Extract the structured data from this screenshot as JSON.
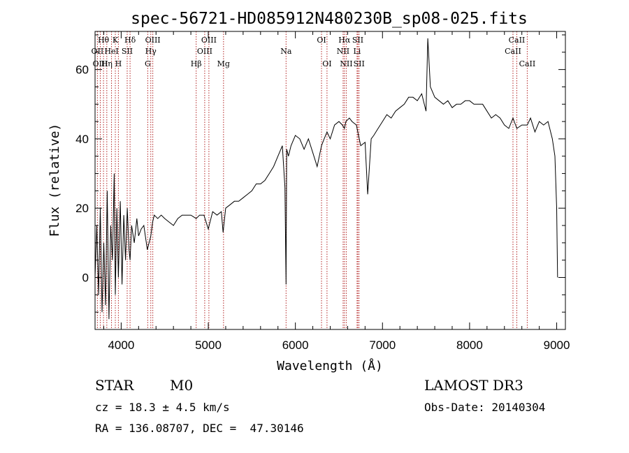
{
  "chart_data": {
    "type": "line",
    "title": "spec-56721-HD085912N480230B_sp08-025.fits",
    "xlabel": "Wavelength (Å)",
    "ylabel": "Flux (relative)",
    "xlim": [
      3700,
      9100
    ],
    "ylim": [
      -15,
      71
    ],
    "xticks": [
      4000,
      5000,
      6000,
      7000,
      8000,
      9000
    ],
    "yticks": [
      0,
      20,
      40,
      60
    ],
    "x_minor_step": 200,
    "y_minor_step": 5,
    "grid": false,
    "series": [
      {
        "name": "flux",
        "color": "#000000",
        "x": [
          3700,
          3720,
          3740,
          3760,
          3780,
          3800,
          3820,
          3840,
          3860,
          3880,
          3900,
          3920,
          3933,
          3950,
          3968,
          3990,
          4010,
          4030,
          4050,
          4070,
          4090,
          4102,
          4120,
          4150,
          4180,
          4200,
          4230,
          4260,
          4300,
          4340,
          4361,
          4380,
          4420,
          4460,
          4500,
          4550,
          4600,
          4650,
          4700,
          4750,
          4800,
          4861,
          4900,
          4950,
          5000,
          5050,
          5100,
          5150,
          5170,
          5200,
          5250,
          5300,
          5350,
          5400,
          5450,
          5500,
          5550,
          5600,
          5650,
          5700,
          5750,
          5800,
          5850,
          5880,
          5893,
          5900,
          5920,
          5950,
          6000,
          6050,
          6100,
          6150,
          6200,
          6250,
          6300,
          6330,
          6363,
          6400,
          6450,
          6500,
          6540,
          6563,
          6580,
          6620,
          6650,
          6700,
          6750,
          6800,
          6830,
          6870,
          6900,
          6950,
          7000,
          7050,
          7100,
          7150,
          7200,
          7250,
          7300,
          7350,
          7400,
          7450,
          7500,
          7520,
          7550,
          7600,
          7650,
          7700,
          7750,
          7800,
          7850,
          7900,
          7950,
          8000,
          8050,
          8100,
          8150,
          8200,
          8250,
          8300,
          8350,
          8400,
          8450,
          8498,
          8542,
          8600,
          8662,
          8700,
          8750,
          8800,
          8850,
          8900,
          8950,
          8980,
          9000,
          9010
        ],
        "y": [
          0,
          15,
          -5,
          20,
          -10,
          10,
          -8,
          25,
          -12,
          15,
          5,
          30,
          -5,
          20,
          0,
          22,
          -2,
          18,
          5,
          20,
          8,
          5,
          15,
          10,
          17,
          12,
          14,
          15,
          8,
          12,
          16,
          18,
          17,
          18,
          17,
          16,
          15,
          17,
          18,
          18,
          18,
          17,
          18,
          18,
          14,
          19,
          18,
          19,
          13,
          20,
          21,
          22,
          22,
          23,
          24,
          25,
          27,
          27,
          28,
          30,
          32,
          35,
          38,
          26,
          -2,
          37,
          35,
          38,
          41,
          40,
          37,
          40,
          36,
          32,
          38,
          40,
          42,
          40,
          44,
          45,
          44,
          43,
          45,
          46,
          45,
          44,
          38,
          39,
          24,
          40,
          41,
          43,
          45,
          47,
          46,
          48,
          49,
          50,
          52,
          52,
          51,
          53,
          48,
          69,
          55,
          52,
          51,
          50,
          51,
          49,
          50,
          50,
          51,
          51,
          50,
          50,
          50,
          48,
          46,
          47,
          46,
          44,
          43,
          46,
          43,
          44,
          44,
          46,
          42,
          45,
          44,
          45,
          40,
          35,
          20,
          0
        ]
      }
    ],
    "lines": [
      {
        "label": "Hθ",
        "wl": 3797,
        "row": 1
      },
      {
        "label": "OII",
        "wl": 3727,
        "row": 2
      },
      {
        "label": "OIII",
        "wl": 3760,
        "row": 3
      },
      {
        "label": "K",
        "wl": 3933,
        "row": 1
      },
      {
        "label": "HeI",
        "wl": 3889,
        "row": 2
      },
      {
        "label": "Hη",
        "wl": 3835,
        "row": 3
      },
      {
        "label": "H",
        "wl": 3968,
        "row": 3
      },
      {
        "label": "Hδ",
        "wl": 4102,
        "row": 1
      },
      {
        "label": "SII",
        "wl": 4069,
        "row": 2
      },
      {
        "label": "OIII",
        "wl": 4363,
        "row": 1
      },
      {
        "label": "Hγ",
        "wl": 4340,
        "row": 2
      },
      {
        "label": "G",
        "wl": 4305,
        "row": 3
      },
      {
        "label": "OIII",
        "wl": 5007,
        "row": 1
      },
      {
        "label": "OIII",
        "wl": 4959,
        "row": 2
      },
      {
        "label": "Hβ",
        "wl": 4861,
        "row": 3
      },
      {
        "label": "Mg",
        "wl": 5175,
        "row": 3
      },
      {
        "label": "Na",
        "wl": 5893,
        "row": 2
      },
      {
        "label": "OI",
        "wl": 6300,
        "row": 1
      },
      {
        "label": "OI",
        "wl": 6363,
        "row": 3
      },
      {
        "label": "Hα",
        "wl": 6563,
        "row": 1
      },
      {
        "label": "NII",
        "wl": 6548,
        "row": 2
      },
      {
        "label": "NII",
        "wl": 6584,
        "row": 3
      },
      {
        "label": "SII",
        "wl": 6717,
        "row": 1
      },
      {
        "label": "Li",
        "wl": 6708,
        "row": 2
      },
      {
        "label": "SII",
        "wl": 6731,
        "row": 3
      },
      {
        "label": "CaII",
        "wl": 8542,
        "row": 1
      },
      {
        "label": "CaII",
        "wl": 8498,
        "row": 2
      },
      {
        "label": "CaII",
        "wl": 8662,
        "row": 3
      }
    ],
    "line_color": "#b22222"
  },
  "info": {
    "object_class": "STAR",
    "subclass": "M0",
    "survey": "LAMOST DR3",
    "redshift": "cz = 18.3 ± 4.5 km/s",
    "obs_date": "Obs-Date: 20140304",
    "coords": "RA = 136.08707, DEC =  47.30146"
  }
}
